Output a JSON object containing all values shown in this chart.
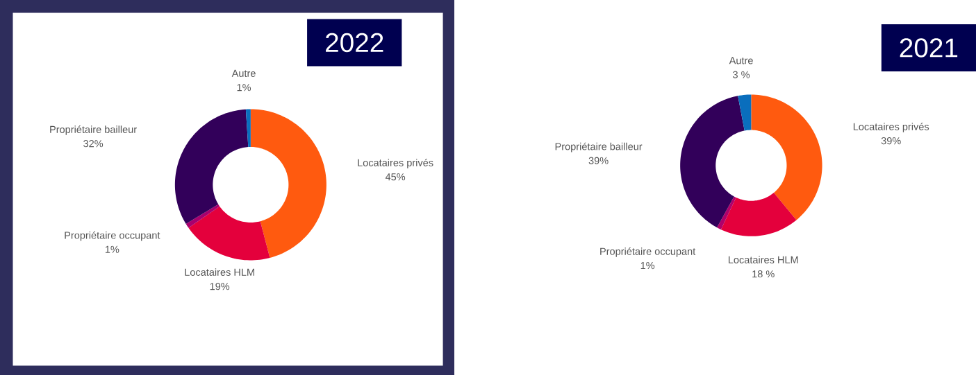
{
  "chart_data": [
    {
      "type": "donut",
      "title": "2022",
      "categories": [
        "Locataires privés",
        "Locataires HLM",
        "Propriétaire occupant",
        "Propriétaire bailleur",
        "Autre"
      ],
      "values": [
        45,
        19,
        1,
        32,
        1
      ],
      "colors": [
        "#ff5a0f",
        "#e4003c",
        "#a8006e",
        "#32005a",
        "#0a6ebd"
      ],
      "value_labels": [
        "45%",
        "19%",
        "1%",
        "32%",
        "1%"
      ]
    },
    {
      "type": "donut",
      "title": "2021",
      "categories": [
        "Locataires privés",
        "Locataires HLM",
        "Propriétaire occupant",
        "Propriétaire bailleur",
        "Autre"
      ],
      "values": [
        39,
        18,
        1,
        39,
        3
      ],
      "colors": [
        "#ff5a0f",
        "#e4003c",
        "#b0006a",
        "#32005a",
        "#0a6ebd"
      ],
      "value_labels": [
        "39%",
        "18 %",
        "1%",
        "39%",
        "3 %"
      ]
    }
  ]
}
